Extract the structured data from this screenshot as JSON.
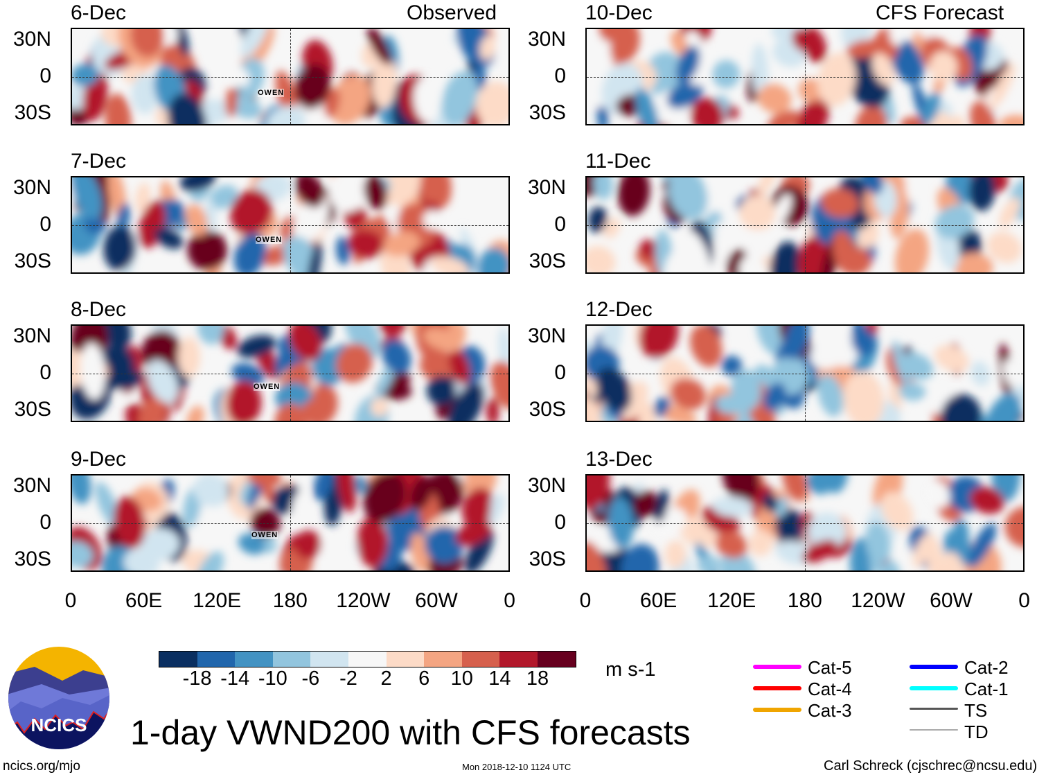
{
  "headers": {
    "left": "Observed",
    "right": "CFS Forecast"
  },
  "panels_left": [
    {
      "date": "6-Dec",
      "storm": "OWEN"
    },
    {
      "date": "7-Dec",
      "storm": "OWEN"
    },
    {
      "date": "8-Dec",
      "storm": "OWEN"
    },
    {
      "date": "9-Dec",
      "storm": "OWEN"
    }
  ],
  "panels_right": [
    {
      "date": "10-Dec"
    },
    {
      "date": "11-Dec"
    },
    {
      "date": "12-Dec"
    },
    {
      "date": "13-Dec"
    }
  ],
  "lat_labels": [
    "30N",
    "0",
    "30S"
  ],
  "lon_labels": [
    "0",
    "60E",
    "120E",
    "180",
    "120W",
    "60W",
    "0"
  ],
  "colorbar": {
    "colors": [
      "#0a2f61",
      "#2166ac",
      "#4393c3",
      "#92c5de",
      "#d1e5f0",
      "#f7f7f7",
      "#fddbc7",
      "#f4a582",
      "#d6604d",
      "#b2182b",
      "#67001f"
    ],
    "labels": [
      "-18",
      "-14",
      "-10",
      "-6",
      "-2",
      "2",
      "6",
      "10",
      "14",
      "18"
    ],
    "units": "m s-1"
  },
  "legend": [
    {
      "label": "Cat-5",
      "color": "#ff00ff"
    },
    {
      "label": "Cat-4",
      "color": "#ff0000"
    },
    {
      "label": "Cat-3",
      "color": "#f0a500"
    },
    {
      "label": "Cat-2",
      "color": "#0000ff"
    },
    {
      "label": "Cat-1",
      "color": "#00ffff"
    },
    {
      "label": "TS",
      "color": "#555555"
    },
    {
      "label": "TD",
      "color": "#aaaaaa"
    }
  ],
  "title": "1-day VWND200 with CFS forecasts",
  "logo_text": "NCICS",
  "footer": {
    "left": "ncics.org/mjo",
    "center": "Mon 2018-12-10 1124 UTC",
    "right": "Carl Schreck (cjschrec@ncsu.edu)"
  }
}
